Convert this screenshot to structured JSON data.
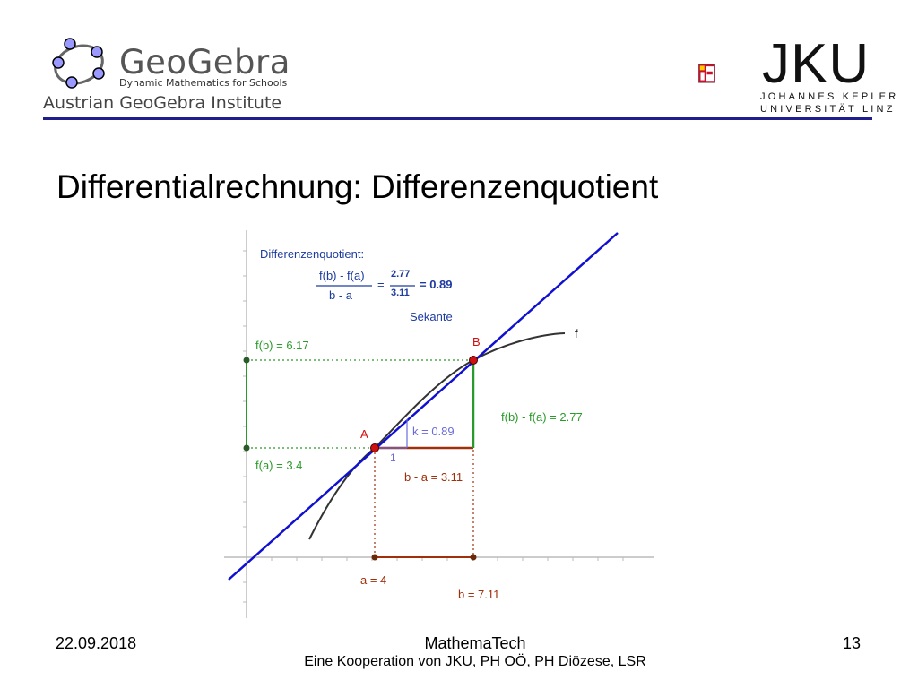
{
  "header": {
    "geogebra_brand": "GeoGebra",
    "geogebra_tagline": "Dynamic Mathematics for Schools",
    "institute": "Austrian GeoGebra Institute",
    "jku_name": "JKU",
    "jku_line1": "JOHANNES KEPLER",
    "jku_line2": "UNIVERSITÄT LINZ"
  },
  "slide": {
    "title": "Differentialrechnung:  Differenzenquotient"
  },
  "diagram": {
    "formula_heading": "Differenzenquotient:",
    "formula_numerator": "f(b) - f(a)",
    "formula_denominator": "b - a",
    "formula_equals": "=",
    "formula_num_value": "2.77",
    "formula_den_value": "3.11",
    "formula_result": "= 0.89",
    "secant_label": "Sekante",
    "function_label": "f",
    "point_a": "A",
    "point_b": "B",
    "fb_label": "f(b) = 6.17",
    "fa_label": "f(a) = 3.4",
    "rise_label": "f(b) - f(a) = 2.77",
    "run_label": "b - a = 3.11",
    "slope_label": "k = 0.89",
    "unit_label": "1",
    "a_label": "a = 4",
    "b_label": "b = 7.11",
    "colors": {
      "secant": "#1010d0",
      "curve": "#333333",
      "green": "#2a9a2a",
      "brown": "#a0300a",
      "red": "#d01010",
      "formula": "#1e3ca0",
      "slope": "#6a6adc"
    }
  },
  "footer": {
    "date": "22.09.2018",
    "center_line1": "MathemaTech",
    "center_line2": "Eine Kooperation von JKU, PH OÖ, PH Diözese, LSR",
    "page": "13"
  }
}
